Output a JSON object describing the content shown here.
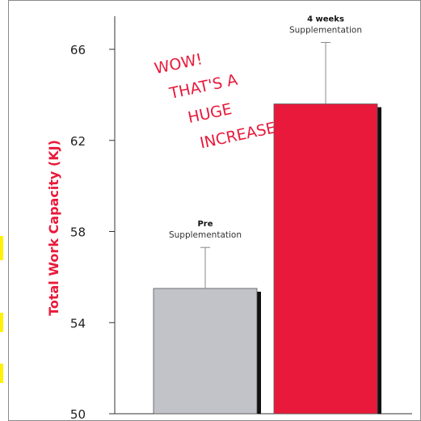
{
  "colors": {
    "frame": "#8a8a8a",
    "axis": "#333333",
    "ylabel": "#e8193a",
    "bar_pre": "#c1c3c8",
    "bar_post": "#e8193a",
    "shadow": "#111111",
    "handwriting": "#e8193a",
    "highlight": "#fff200"
  },
  "annotation": {
    "lines": [
      "WOW!",
      "THAT'S A",
      "HUGE",
      "INCREASE!"
    ]
  },
  "chart_data": {
    "type": "bar",
    "ylabel": "Total Work Capacity (KJ)",
    "ylim": [
      50,
      66
    ],
    "yticks": [
      50,
      54,
      58,
      62,
      66
    ],
    "grid": false,
    "legend": "none",
    "bars": [
      {
        "title": "Pre",
        "subtitle": "Supplementation",
        "value": 55.5,
        "error_upper": 57.3,
        "color_key": "bar_pre"
      },
      {
        "title": "4 weeks",
        "subtitle": "Supplementation",
        "value": 63.6,
        "error_upper": 66.3,
        "color_key": "bar_post"
      }
    ]
  }
}
